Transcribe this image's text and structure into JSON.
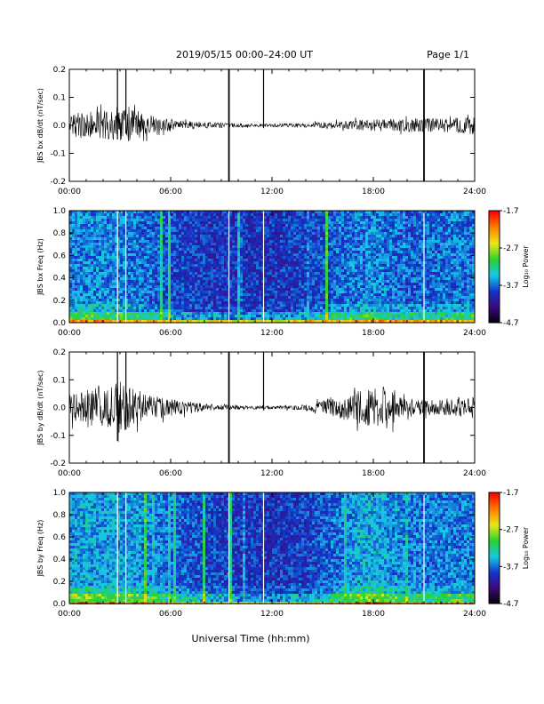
{
  "header": {
    "title": "2019/05/15  00:00–24:00 UT",
    "page": "Page 1/1"
  },
  "footer": {
    "xlabel": "Universal Time (hh:mm)"
  },
  "colors": {
    "trace": "#000000",
    "colormap": [
      "#000000",
      "#3a0a7a",
      "#1533c8",
      "#16c8e8",
      "#2bd12b",
      "#e8e81a",
      "#ff8000",
      "#ff0000"
    ]
  },
  "chart_data": [
    {
      "type": "line",
      "ylabel": "JBS bx dB/dt (nT/sec)",
      "xlim": [
        0,
        24
      ],
      "ylim": [
        -0.2,
        0.2
      ],
      "xticks": [
        "00:00",
        "06:00",
        "12:00",
        "18:00",
        "24:00"
      ],
      "yticks": [
        "-0.2",
        "-0.1",
        "0.0",
        "0.1",
        "0.2"
      ],
      "series": [
        {
          "x": [
            0,
            1,
            2,
            2.8,
            3.5,
            4.5,
            6,
            8,
            9.5,
            11,
            12,
            14,
            16,
            18.5,
            19.5,
            20.5,
            22,
            23.5,
            24
          ],
          "envelope": [
            0.04,
            0.05,
            0.05,
            0.07,
            0.07,
            0.04,
            0.02,
            0.012,
            0.008,
            0.006,
            0.006,
            0.008,
            0.014,
            0.025,
            0.02,
            0.025,
            0.025,
            0.03,
            0.03
          ]
        }
      ],
      "spikes": [
        {
          "t": 2.85,
          "min": -0.05,
          "max": 0.22
        },
        {
          "t": 3.35,
          "min": -0.03,
          "max": 0.2
        },
        {
          "t": 9.45,
          "min": -0.22,
          "max": 0.22
        },
        {
          "t": 11.5,
          "min": -0.01,
          "max": 0.22
        },
        {
          "t": 21.0,
          "min": -0.22,
          "max": 0.22
        }
      ]
    },
    {
      "type": "heatmap",
      "ylabel": "JBS bx Freq (Hz)",
      "colorbar_label": "Log₁₀ Power",
      "xlim": [
        0,
        24
      ],
      "ylim": [
        0,
        1
      ],
      "zlim": [
        -4.7,
        -1.7
      ],
      "xticks": [
        "00:00",
        "06:00",
        "12:00",
        "18:00",
        "24:00"
      ],
      "yticks": [
        "0.0",
        "0.2",
        "0.4",
        "0.6",
        "0.8",
        "1.0"
      ],
      "cbticks": [
        "-1.7",
        "-2.7",
        "-3.7",
        "-4.7"
      ],
      "data_gaps_hours": [
        2.85,
        3.35,
        9.45,
        11.5,
        21.0
      ],
      "activity_profile": {
        "x": [
          0,
          3,
          5,
          6,
          8,
          10,
          12,
          14,
          16,
          18,
          20,
          22,
          24
        ],
        "level": [
          0.55,
          0.55,
          0.4,
          0.3,
          0.22,
          0.18,
          0.2,
          0.28,
          0.45,
          0.55,
          0.4,
          0.45,
          0.5
        ]
      }
    },
    {
      "type": "line",
      "ylabel": "JBS by dB/dt (nT/sec)",
      "xlim": [
        0,
        24
      ],
      "ylim": [
        -0.2,
        0.2
      ],
      "xticks": [
        "00:00",
        "06:00",
        "12:00",
        "18:00",
        "24:00"
      ],
      "yticks": [
        "-0.2",
        "-0.1",
        "0.0",
        "0.1",
        "0.2"
      ],
      "series": [
        {
          "x": [
            0,
            1,
            2,
            2.8,
            3.5,
            4.5,
            6,
            8,
            9.5,
            11,
            12,
            14,
            15,
            16.5,
            18,
            18.8,
            19.5,
            20.5,
            22,
            23.5,
            24
          ],
          "envelope": [
            0.05,
            0.07,
            0.07,
            0.12,
            0.08,
            0.05,
            0.03,
            0.015,
            0.008,
            0.006,
            0.006,
            0.01,
            0.025,
            0.05,
            0.07,
            0.08,
            0.04,
            0.03,
            0.03,
            0.04,
            0.04
          ]
        }
      ],
      "spikes": [
        {
          "t": 2.85,
          "min": -0.12,
          "max": 0.21
        },
        {
          "t": 3.35,
          "min": -0.05,
          "max": 0.2
        },
        {
          "t": 9.45,
          "min": -0.22,
          "max": 0.22
        },
        {
          "t": 11.5,
          "min": -0.01,
          "max": 0.22
        },
        {
          "t": 21.0,
          "min": -0.22,
          "max": 0.22
        }
      ]
    },
    {
      "type": "heatmap",
      "ylabel": "JBS by Freq (Hz)",
      "colorbar_label": "Log₁₀ Power",
      "xlim": [
        0,
        24
      ],
      "ylim": [
        0,
        1
      ],
      "zlim": [
        -4.7,
        -1.7
      ],
      "xticks": [
        "00:00",
        "06:00",
        "12:00",
        "18:00",
        "24:00"
      ],
      "yticks": [
        "0.0",
        "0.2",
        "0.4",
        "0.6",
        "0.8",
        "1.0"
      ],
      "cbticks": [
        "-1.7",
        "-2.7",
        "-3.7",
        "-4.7"
      ],
      "data_gaps_hours": [
        2.85,
        3.35,
        9.45,
        11.5,
        21.0
      ],
      "activity_profile": {
        "x": [
          0,
          3,
          5,
          6,
          8,
          10,
          12,
          14,
          16,
          17.5,
          18.5,
          20,
          22,
          24
        ],
        "level": [
          0.65,
          0.65,
          0.55,
          0.45,
          0.3,
          0.22,
          0.2,
          0.28,
          0.5,
          0.7,
          0.65,
          0.5,
          0.5,
          0.55
        ]
      }
    }
  ]
}
